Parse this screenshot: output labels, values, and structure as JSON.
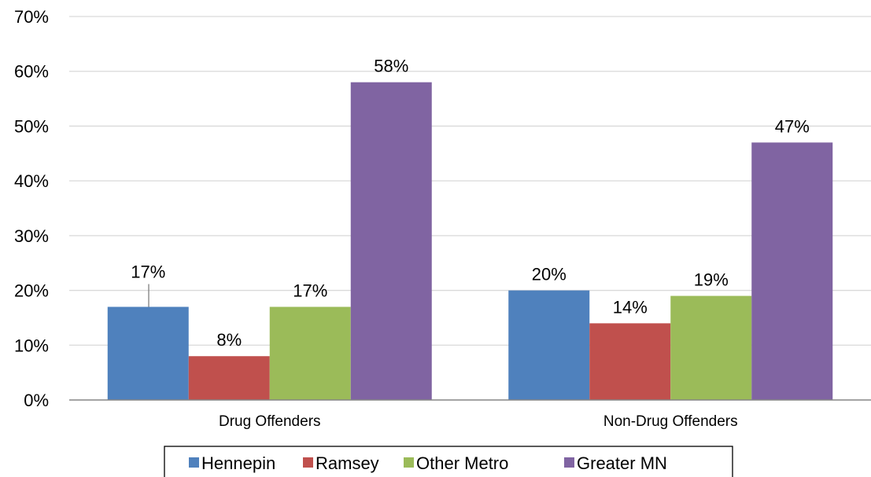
{
  "chart_data": {
    "type": "bar",
    "categories": [
      "Drug Offenders",
      "Non-Drug Offenders"
    ],
    "series": [
      {
        "name": "Hennepin",
        "values": [
          17,
          20
        ],
        "color": "#4f81bd"
      },
      {
        "name": "Ramsey",
        "values": [
          8,
          14
        ],
        "color": "#c0504d"
      },
      {
        "name": "Other Metro",
        "values": [
          17,
          19
        ],
        "color": "#9bbb59"
      },
      {
        "name": "Greater MN",
        "values": [
          58,
          47
        ],
        "color": "#8064a2"
      }
    ],
    "data_labels": [
      [
        "17%",
        "20%"
      ],
      [
        "8%",
        "14%"
      ],
      [
        "17%",
        "19%"
      ],
      [
        "58%",
        "47%"
      ]
    ],
    "ylim": [
      0,
      70
    ],
    "yticks": [
      0,
      10,
      20,
      30,
      40,
      50,
      60,
      70
    ],
    "ytick_labels": [
      "0%",
      "10%",
      "20%",
      "30%",
      "40%",
      "50%",
      "60%",
      "70%"
    ],
    "grid": true,
    "legend_position": "bottom",
    "gridline_color": "#d9d9d9",
    "axis_color": "#868686"
  }
}
